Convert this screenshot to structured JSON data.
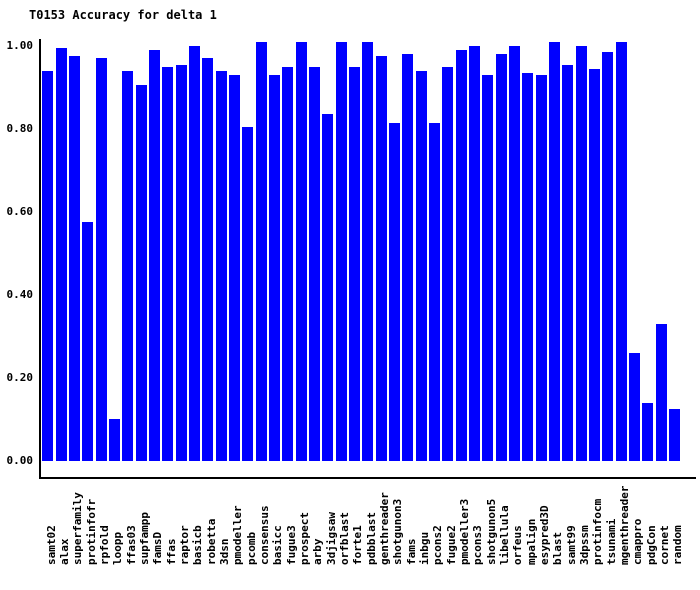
{
  "title": "T0153 Accuracy for delta 1",
  "chart_data": {
    "type": "bar",
    "title": "T0153 Accuracy for delta 1",
    "xlabel": "",
    "ylabel": "",
    "ylim": [
      0.0,
      1.02
    ],
    "grid": false,
    "legend": "none",
    "background_color": "#ffffff",
    "bar_color": "#0000ff",
    "axis_color": "#000000",
    "text_color": "#000000",
    "y_ticks": [
      "1.00",
      "0.80",
      "0.60",
      "0.40",
      "0.20",
      "0.00"
    ],
    "categories": [
      "samt02",
      "alax",
      "superfamily",
      "protinfofr",
      "rpfold",
      "loopp",
      "ffas03",
      "supfampp",
      "famsD",
      "ffas",
      "raptor",
      "basicb",
      "robetta",
      "3dsn",
      "pmodeller",
      "pcomb",
      "consensus",
      "basicc",
      "fugue3",
      "prospect",
      "arby",
      "3djigsaw",
      "orfblast",
      "forte1",
      "pdbblast",
      "genthreader",
      "shotgunon3",
      "fams",
      "inbgu",
      "pcons2",
      "fugue2",
      "pmodeller3",
      "pcons3",
      "shotgunon5",
      "libellula",
      "orfeus",
      "mpalign",
      "esypred3D",
      "blast",
      "samt99",
      "3dpssm",
      "protinfocm",
      "tsunami",
      "mgenthreader",
      "cmappro",
      "pdgCon",
      "cornet",
      "random"
    ],
    "values": [
      0.94,
      0.995,
      0.975,
      0.575,
      0.97,
      0.1,
      0.94,
      0.905,
      0.99,
      0.95,
      0.955,
      1.0,
      0.97,
      0.94,
      0.93,
      0.805,
      1.01,
      0.93,
      0.95,
      1.01,
      0.95,
      0.835,
      1.01,
      0.95,
      1.01,
      0.975,
      0.815,
      0.98,
      0.94,
      0.815,
      0.95,
      0.99,
      1.0,
      0.93,
      0.98,
      1.0,
      0.935,
      0.93,
      1.01,
      0.955,
      1.0,
      0.945,
      0.985,
      1.01,
      0.26,
      0.14,
      0.33,
      0.125
    ]
  }
}
